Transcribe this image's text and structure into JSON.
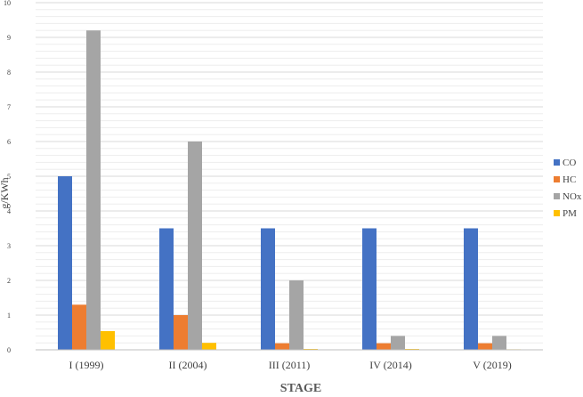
{
  "chart_data": {
    "type": "bar",
    "title": "",
    "xlabel": "STAGE",
    "ylabel": "g/KWh",
    "ylim": [
      0,
      10
    ],
    "yticks": [
      0,
      1,
      2,
      3,
      4,
      5,
      6,
      7,
      8,
      9,
      10
    ],
    "minor_grid_step": 0.2,
    "grid": true,
    "legend_position": "right",
    "categories": [
      "I (1999)",
      "II (2004)",
      "III (2011)",
      "IV (2014)",
      "V (2019)"
    ],
    "series": [
      {
        "name": "CO",
        "color": "#4472C4",
        "values": [
          5.0,
          3.5,
          3.5,
          3.5,
          3.5
        ]
      },
      {
        "name": "HC",
        "color": "#ED7D31",
        "values": [
          1.3,
          1.0,
          0.19,
          0.19,
          0.19
        ]
      },
      {
        "name": "NOx",
        "color": "#A5A5A5",
        "values": [
          9.2,
          6.0,
          2.0,
          0.4,
          0.4
        ]
      },
      {
        "name": "PM",
        "color": "#FFC000",
        "values": [
          0.54,
          0.2,
          0.025,
          0.025,
          0.015
        ]
      }
    ]
  }
}
